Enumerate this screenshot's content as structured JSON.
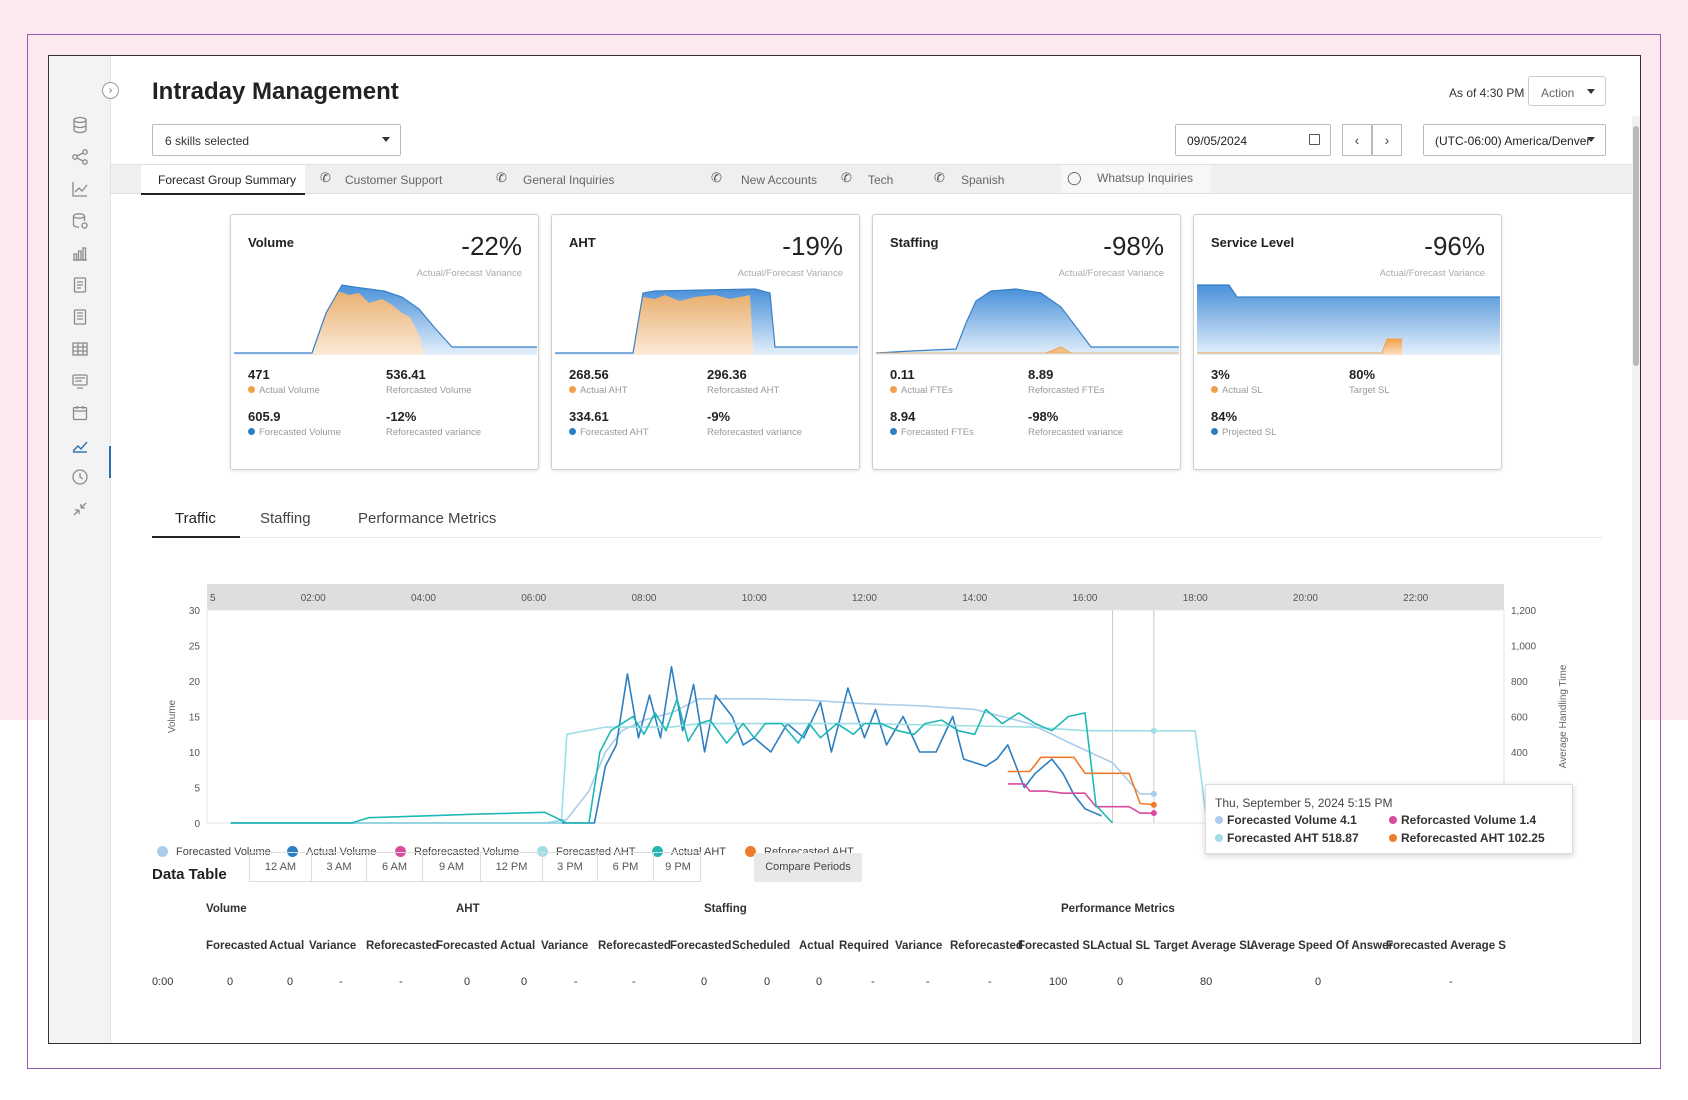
{
  "header": {
    "title": "Intraday Management",
    "as_of": "As of 4:30 PM",
    "action_label": "Action"
  },
  "filters": {
    "skills": "6 skills selected",
    "date": "09/05/2024",
    "timezone": "(UTC-06:00) America/Denver"
  },
  "skill_tabs": [
    {
      "label": "Forecast Group Summary",
      "icon": "none"
    },
    {
      "label": "Customer Support",
      "icon": "phone-icon"
    },
    {
      "label": "General Inquiries",
      "icon": "phone-icon"
    },
    {
      "label": "New Accounts",
      "icon": "phone-icon"
    },
    {
      "label": "Tech",
      "icon": "phone-icon"
    },
    {
      "label": "Spanish",
      "icon": "phone-icon"
    },
    {
      "label": "Whatsup Inquiries",
      "icon": "chat-icon"
    }
  ],
  "kpis": [
    {
      "title": "Volume",
      "pct": "-22%",
      "sub": "Actual/Forecast Variance",
      "stats": [
        {
          "value": "471",
          "label": "Actual Volume",
          "dot": "#f0a04b"
        },
        {
          "value": "536.41",
          "label": "Reforcasted Volume",
          "dot": ""
        },
        {
          "value": "605.9",
          "label": "Forecasted Volume",
          "dot": "#2d7fc1"
        },
        {
          "value": "-12%",
          "label": "Reforecasted variance",
          "dot": ""
        }
      ]
    },
    {
      "title": "AHT",
      "pct": "-19%",
      "sub": "Actual/Forecast Variance",
      "stats": [
        {
          "value": "268.56",
          "label": "Actual AHT",
          "dot": "#f0a04b"
        },
        {
          "value": "296.36",
          "label": "Reforcasted AHT",
          "dot": ""
        },
        {
          "value": "334.61",
          "label": "Forecasted AHT",
          "dot": "#2d7fc1"
        },
        {
          "value": "-9%",
          "label": "Reforecasted variance",
          "dot": ""
        }
      ]
    },
    {
      "title": "Staffing",
      "pct": "-98%",
      "sub": "Actual/Forecast Variance",
      "stats": [
        {
          "value": "0.11",
          "label": "Actual FTEs",
          "dot": "#f0a04b"
        },
        {
          "value": "8.89",
          "label": "Reforcasted FTEs",
          "dot": ""
        },
        {
          "value": "8.94",
          "label": "Forecasted FTEs",
          "dot": "#2d7fc1"
        },
        {
          "value": "-98%",
          "label": "Reforecasted variance",
          "dot": ""
        }
      ]
    },
    {
      "title": "Service Level",
      "pct": "-96%",
      "sub": "Actual/Forecast Variance",
      "stats": [
        {
          "value": "3%",
          "label": "Actual SL",
          "dot": "#f0a04b"
        },
        {
          "value": "80%",
          "label": "Target SL",
          "dot": ""
        },
        {
          "value": "84%",
          "label": "Projected SL",
          "dot": "#2d7fc1"
        }
      ]
    }
  ],
  "main_tabs": [
    "Traffic",
    "Staffing",
    "Performance Metrics"
  ],
  "chart_data": {
    "type": "line",
    "x_ticks": [
      "5",
      "02:00",
      "04:00",
      "06:00",
      "08:00",
      "10:00",
      "12:00",
      "14:00",
      "16:00",
      "18:00",
      "20:00",
      "22:00"
    ],
    "ylabel": "Volume",
    "y2label": "Average Handling Time",
    "ylim": [
      0,
      30
    ],
    "y_ticks": [
      0,
      5,
      10,
      15,
      20,
      25,
      30
    ],
    "y2lim": [
      0,
      1200
    ],
    "y2_ticks": [
      "0",
      "200",
      "400",
      "600",
      "800",
      "1,000",
      "1,200"
    ],
    "grid": false,
    "series": [
      {
        "name": "Forecasted Volume",
        "color": "#a9cdeb",
        "axis": "y",
        "points": [
          [
            0.5,
            0
          ],
          [
            6.2,
            0
          ],
          [
            6.6,
            0.5
          ],
          [
            7.0,
            4.5
          ],
          [
            7.3,
            10
          ],
          [
            7.6,
            13
          ],
          [
            8.0,
            14.5
          ],
          [
            8.5,
            15.5
          ],
          [
            9.0,
            17.5
          ],
          [
            10,
            17.5
          ],
          [
            11,
            17.3
          ],
          [
            12,
            16.8
          ],
          [
            13,
            16.5
          ],
          [
            14,
            16
          ],
          [
            15,
            14
          ],
          [
            15.8,
            11
          ],
          [
            16.5,
            8.5
          ],
          [
            17.0,
            4.1
          ],
          [
            17.3,
            4.1
          ]
        ]
      },
      {
        "name": "Actual Volume",
        "color": "#2d7fc1",
        "axis": "y",
        "points": [
          [
            0.5,
            0
          ],
          [
            6.6,
            0
          ],
          [
            7.1,
            0
          ],
          [
            7.3,
            8
          ],
          [
            7.5,
            11
          ],
          [
            7.7,
            21
          ],
          [
            7.9,
            12
          ],
          [
            8.1,
            18
          ],
          [
            8.3,
            12
          ],
          [
            8.5,
            22
          ],
          [
            8.7,
            13
          ],
          [
            8.9,
            19.5
          ],
          [
            9.1,
            10
          ],
          [
            9.3,
            18
          ],
          [
            9.6,
            15
          ],
          [
            9.8,
            11
          ],
          [
            10.0,
            12
          ],
          [
            10.3,
            10
          ],
          [
            10.6,
            14
          ],
          [
            10.9,
            12
          ],
          [
            11.2,
            17
          ],
          [
            11.4,
            10
          ],
          [
            11.7,
            19
          ],
          [
            12.0,
            12
          ],
          [
            12.2,
            16
          ],
          [
            12.4,
            11
          ],
          [
            12.7,
            15
          ],
          [
            13.0,
            10
          ],
          [
            13.3,
            10
          ],
          [
            13.6,
            15
          ],
          [
            13.8,
            9
          ],
          [
            14.2,
            8
          ],
          [
            14.4,
            9
          ],
          [
            14.6,
            11
          ],
          [
            14.9,
            5
          ],
          [
            15.1,
            7
          ],
          [
            15.4,
            9
          ],
          [
            15.6,
            7
          ],
          [
            15.8,
            4
          ],
          [
            16.0,
            2
          ],
          [
            16.3,
            1
          ]
        ]
      },
      {
        "name": "Reforecasted Volume",
        "color": "#d94a9f",
        "axis": "y",
        "points": [
          [
            14.6,
            5.5
          ],
          [
            14.9,
            5.5
          ],
          [
            15.0,
            4.5
          ],
          [
            15.3,
            4.5
          ],
          [
            15.6,
            4.2
          ],
          [
            16.0,
            4.2
          ],
          [
            16.2,
            2.3
          ],
          [
            16.8,
            2.3
          ],
          [
            17.0,
            1.4
          ],
          [
            17.3,
            1.4
          ]
        ]
      },
      {
        "name": "Forecasted AHT",
        "color": "#9edfe6",
        "axis": "y2",
        "points": [
          [
            0.5,
            0
          ],
          [
            6.5,
            0
          ],
          [
            6.6,
            500
          ],
          [
            7.3,
            540
          ],
          [
            8.5,
            540
          ],
          [
            9.0,
            560
          ],
          [
            10,
            560
          ],
          [
            12,
            560
          ],
          [
            15,
            540
          ],
          [
            16,
            520
          ],
          [
            17,
            520
          ],
          [
            17.3,
            518.87
          ],
          [
            18.0,
            520
          ],
          [
            18.2,
            30
          ]
        ]
      },
      {
        "name": "Actual AHT",
        "color": "#1fb8b5",
        "axis": "y2",
        "points": [
          [
            0.5,
            0
          ],
          [
            2.7,
            0
          ],
          [
            3.0,
            30
          ],
          [
            4.0,
            40
          ],
          [
            5.0,
            50
          ],
          [
            6.2,
            60
          ],
          [
            6.6,
            0
          ],
          [
            7.0,
            0
          ],
          [
            7.2,
            400
          ],
          [
            7.4,
            520
          ],
          [
            7.6,
            560
          ],
          [
            7.8,
            600
          ],
          [
            8.0,
            500
          ],
          [
            8.2,
            620
          ],
          [
            8.4,
            520
          ],
          [
            8.6,
            700
          ],
          [
            8.8,
            460
          ],
          [
            9.0,
            560
          ],
          [
            9.2,
            580
          ],
          [
            9.5,
            450
          ],
          [
            9.8,
            560
          ],
          [
            10.0,
            480
          ],
          [
            10.2,
            560
          ],
          [
            10.5,
            560
          ],
          [
            10.8,
            450
          ],
          [
            11.0,
            560
          ],
          [
            11.2,
            480
          ],
          [
            11.5,
            560
          ],
          [
            11.8,
            500
          ],
          [
            12.0,
            560
          ],
          [
            12.3,
            560
          ],
          [
            12.6,
            520
          ],
          [
            12.9,
            500
          ],
          [
            13.1,
            560
          ],
          [
            13.4,
            580
          ],
          [
            13.7,
            520
          ],
          [
            14.0,
            500
          ],
          [
            14.2,
            640
          ],
          [
            14.5,
            560
          ],
          [
            14.8,
            620
          ],
          [
            15.1,
            560
          ],
          [
            15.4,
            520
          ],
          [
            15.7,
            600
          ],
          [
            16.0,
            620
          ],
          [
            16.2,
            100
          ],
          [
            16.5,
            0
          ]
        ]
      },
      {
        "name": "Reforecasted AHT",
        "color": "#ef7a2a",
        "axis": "y2",
        "points": [
          [
            14.6,
            290
          ],
          [
            15.0,
            290
          ],
          [
            15.2,
            370
          ],
          [
            15.6,
            370
          ],
          [
            15.8,
            370
          ],
          [
            16.0,
            280
          ],
          [
            16.4,
            280
          ],
          [
            16.8,
            280
          ],
          [
            17.0,
            110
          ],
          [
            17.3,
            102.25
          ]
        ]
      }
    ],
    "tooltip": {
      "date": "Thu, September 5, 2024 5:15 PM",
      "rows": [
        {
          "label": "Forecasted Volume 4.1",
          "color": "#a9cdeb"
        },
        {
          "label": "Reforcasted Volume 1.4",
          "color": "#d94a9f"
        },
        {
          "label": "Forecasted AHT 518.87",
          "color": "#9edfe6"
        },
        {
          "label": "Reforecasted AHT 102.25",
          "color": "#ef7a2a"
        }
      ]
    }
  },
  "data_table": {
    "title": "Data Table",
    "times": [
      "12 AM",
      "3 AM",
      "6 AM",
      "9 AM",
      "12 PM",
      "3 PM",
      "6 PM",
      "9 PM"
    ],
    "compare_label": "Compare Periods",
    "groups": [
      "Volume",
      "AHT",
      "Staffing",
      "Performance Metrics"
    ],
    "columns": [
      "Forecasted",
      "Actual",
      "Variance",
      "Reforecasted",
      "Forecasted",
      "Actual",
      "Variance",
      "Reforecasted",
      "Forecasted",
      "Scheduled",
      "Actual",
      "Required",
      "Variance",
      "Reforecasted",
      "Forecasted SL",
      "Actual SL",
      "Target Average SL",
      "Average Speed Of Answer",
      "Forecasted Average S"
    ],
    "first_row": [
      "0:00",
      "0",
      "0",
      "-",
      "-",
      "0",
      "0",
      "-",
      "-",
      "0",
      "0",
      "0",
      "-",
      "-",
      "-",
      "100",
      "0",
      "80",
      "0",
      "-"
    ]
  }
}
